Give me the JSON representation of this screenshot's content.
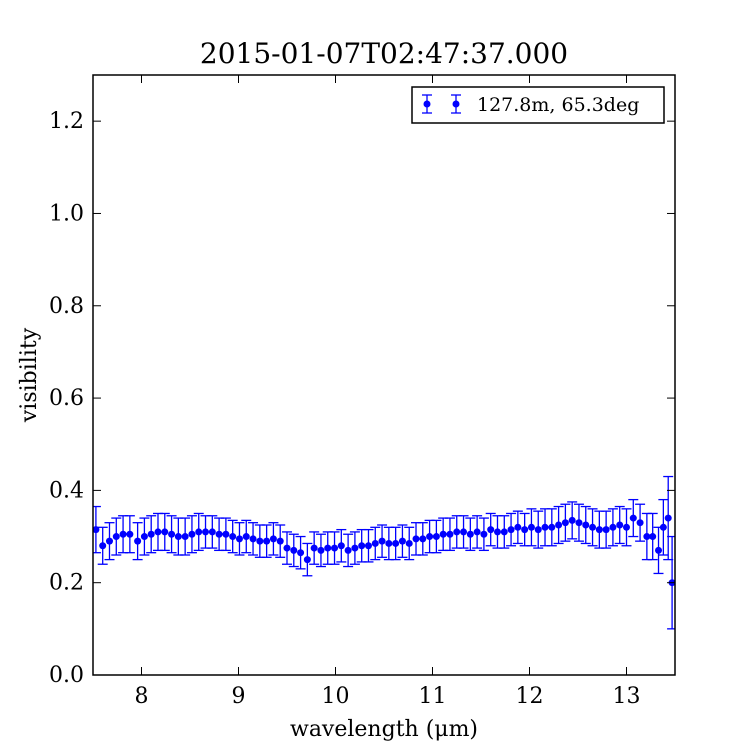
{
  "chart_data": {
    "type": "scatter",
    "title": "2015-01-07T02:47:37.000",
    "xlabel": "wavelength (μm)",
    "ylabel": "visibility",
    "xlim": [
      7.5,
      13.5
    ],
    "ylim": [
      0.0,
      1.3
    ],
    "x_ticks": [
      8,
      9,
      10,
      11,
      12,
      13
    ],
    "y_ticks": [
      0.0,
      0.2,
      0.4,
      0.6,
      0.8,
      1.0,
      1.2
    ],
    "x_tick_labels": [
      "8",
      "9",
      "10",
      "11",
      "12",
      "13"
    ],
    "y_tick_labels": [
      "0.0",
      "0.2",
      "0.4",
      "0.6",
      "0.8",
      "1.0",
      "1.2"
    ],
    "grid": false,
    "legend_position": "top-right",
    "series": [
      {
        "name": "127.8m, 65.3deg",
        "color": "#0000ff",
        "marker": "circle",
        "errorbars": true,
        "x": [
          7.53,
          7.6,
          7.67,
          7.74,
          7.81,
          7.88,
          7.96,
          8.03,
          8.1,
          8.17,
          8.24,
          8.31,
          8.38,
          8.45,
          8.52,
          8.59,
          8.66,
          8.73,
          8.8,
          8.87,
          8.94,
          9.01,
          9.08,
          9.15,
          9.22,
          9.29,
          9.36,
          9.43,
          9.5,
          9.57,
          9.64,
          9.71,
          9.78,
          9.85,
          9.92,
          9.99,
          10.06,
          10.13,
          10.2,
          10.27,
          10.34,
          10.41,
          10.48,
          10.55,
          10.62,
          10.69,
          10.76,
          10.83,
          10.9,
          10.97,
          11.04,
          11.11,
          11.18,
          11.25,
          11.32,
          11.39,
          11.46,
          11.53,
          11.6,
          11.67,
          11.74,
          11.81,
          11.88,
          11.95,
          12.02,
          12.09,
          12.16,
          12.23,
          12.3,
          12.37,
          12.44,
          12.51,
          12.58,
          12.65,
          12.72,
          12.79,
          12.86,
          12.93,
          13.0,
          13.07,
          13.14,
          13.21,
          13.27,
          13.33,
          13.38,
          13.43,
          13.47
        ],
        "y": [
          0.315,
          0.28,
          0.29,
          0.3,
          0.305,
          0.305,
          0.29,
          0.3,
          0.305,
          0.31,
          0.31,
          0.305,
          0.3,
          0.3,
          0.305,
          0.31,
          0.31,
          0.31,
          0.305,
          0.305,
          0.3,
          0.295,
          0.3,
          0.295,
          0.29,
          0.29,
          0.295,
          0.29,
          0.275,
          0.27,
          0.265,
          0.25,
          0.275,
          0.27,
          0.275,
          0.275,
          0.28,
          0.27,
          0.275,
          0.28,
          0.28,
          0.285,
          0.29,
          0.285,
          0.285,
          0.29,
          0.285,
          0.295,
          0.295,
          0.3,
          0.3,
          0.305,
          0.305,
          0.31,
          0.31,
          0.305,
          0.31,
          0.305,
          0.315,
          0.31,
          0.31,
          0.315,
          0.32,
          0.315,
          0.32,
          0.315,
          0.32,
          0.32,
          0.325,
          0.33,
          0.335,
          0.33,
          0.325,
          0.32,
          0.315,
          0.315,
          0.32,
          0.325,
          0.32,
          0.34,
          0.33,
          0.3,
          0.3,
          0.27,
          0.32,
          0.34,
          0.2
        ],
        "err": [
          0.05,
          0.04,
          0.04,
          0.04,
          0.04,
          0.04,
          0.04,
          0.04,
          0.04,
          0.04,
          0.04,
          0.04,
          0.04,
          0.04,
          0.04,
          0.04,
          0.035,
          0.035,
          0.035,
          0.035,
          0.035,
          0.035,
          0.035,
          0.035,
          0.035,
          0.035,
          0.035,
          0.035,
          0.035,
          0.035,
          0.035,
          0.035,
          0.035,
          0.035,
          0.035,
          0.035,
          0.035,
          0.035,
          0.035,
          0.035,
          0.035,
          0.035,
          0.035,
          0.035,
          0.035,
          0.035,
          0.035,
          0.035,
          0.035,
          0.035,
          0.035,
          0.035,
          0.035,
          0.035,
          0.035,
          0.035,
          0.035,
          0.035,
          0.035,
          0.035,
          0.035,
          0.035,
          0.035,
          0.035,
          0.04,
          0.04,
          0.04,
          0.04,
          0.04,
          0.04,
          0.04,
          0.04,
          0.04,
          0.04,
          0.04,
          0.04,
          0.04,
          0.04,
          0.04,
          0.04,
          0.04,
          0.05,
          0.05,
          0.05,
          0.06,
          0.09,
          0.1
        ]
      }
    ]
  }
}
